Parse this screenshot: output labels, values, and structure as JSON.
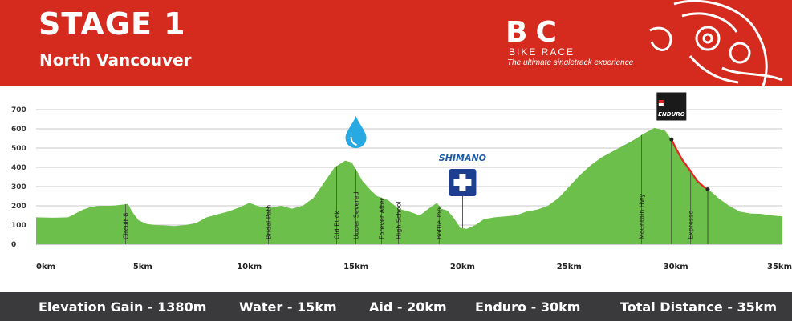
{
  "header": {
    "title": "STAGE 1",
    "subtitle": "North Vancouver",
    "logo_mark": "BC",
    "logo_name": "BIKE RACE",
    "logo_tagline": "The ultimate singletrack experience",
    "background_color": "#d52b1e"
  },
  "footer": {
    "stats": [
      "Elevation Gain - 1380m",
      "Water - 15km",
      "Aid - 20km",
      "Enduro - 30km",
      "Total Distance - 35km"
    ]
  },
  "icons": {
    "water": "water-drop-icon",
    "aid": "first-aid-cross-icon",
    "aid_sponsor": "SHIMANO",
    "enduro": "enduro-flag-icon",
    "enduro_label": "ENDURO",
    "mask": "haida-mask-logo-icon"
  },
  "chart_data": {
    "type": "area",
    "title": "STAGE 1",
    "subtitle": "North Vancouver",
    "xlabel": "",
    "ylabel": "",
    "x_unit": "km",
    "xlim": [
      0,
      35
    ],
    "ylim": [
      0,
      700
    ],
    "x_ticks": [
      "0km",
      "5km",
      "10km",
      "15km",
      "20km",
      "25km",
      "30km",
      "35km"
    ],
    "y_ticks": [
      "0",
      "100",
      "200",
      "300",
      "400",
      "500",
      "600",
      "700"
    ],
    "grid": true,
    "area_color": "#6cbf4a",
    "enduro_color": "#e8231d",
    "series": [
      {
        "x": [
          0,
          0.8,
          1.5,
          2.2,
          2.6,
          3.0,
          3.5,
          4.0,
          4.3,
          4.5,
          4.8,
          5.2,
          5.6,
          6.0,
          6.5,
          7.0,
          7.5,
          8.0,
          8.5,
          9.0,
          9.5,
          10.0,
          10.5,
          11.0,
          11.5,
          12.0,
          12.5,
          13.0,
          13.5,
          14.0,
          14.5,
          14.8,
          15.0,
          15.3,
          15.7,
          16.0,
          16.5,
          17.0,
          17.5,
          18.0,
          18.4,
          18.8,
          19.0,
          19.3,
          19.6,
          19.9,
          20.2,
          20.6,
          21.0,
          21.5,
          22.0,
          22.5,
          23.0,
          23.5,
          24.0,
          24.5,
          25.0,
          25.5,
          26.0,
          26.5,
          27.0,
          27.5,
          28.0,
          28.5,
          29.0,
          29.5,
          29.8,
          30.0,
          30.3,
          30.7,
          31.0,
          31.3,
          31.7,
          32.0,
          32.5,
          33.0,
          33.5,
          34.0,
          34.5,
          35.0
        ],
        "y": [
          140,
          138,
          140,
          180,
          195,
          200,
          200,
          205,
          210,
          170,
          125,
          105,
          100,
          98,
          95,
          100,
          110,
          140,
          155,
          170,
          190,
          215,
          195,
          190,
          200,
          185,
          200,
          240,
          320,
          400,
          435,
          425,
          390,
          330,
          280,
          250,
          230,
          185,
          170,
          150,
          185,
          215,
          185,
          175,
          135,
          85,
          80,
          100,
          130,
          140,
          145,
          150,
          170,
          180,
          200,
          240,
          300,
          360,
          410,
          450,
          480,
          510,
          540,
          575,
          605,
          590,
          545,
          500,
          440,
          380,
          330,
          300,
          270,
          240,
          200,
          170,
          160,
          158,
          150,
          145
        ]
      }
    ],
    "markers": [
      {
        "x": 4.2,
        "label": "Circuit 8"
      },
      {
        "x": 10.9,
        "label": "Bridal Path"
      },
      {
        "x": 14.1,
        "label": "Old Buck"
      },
      {
        "x": 15.0,
        "label": "Upper Severed"
      },
      {
        "x": 16.2,
        "label": "Forever After"
      },
      {
        "x": 17.0,
        "label": "High School"
      },
      {
        "x": 18.9,
        "label": "Bottle Top"
      },
      {
        "x": 28.4,
        "label": "Mountain Hwy"
      },
      {
        "x": 30.7,
        "label": "Expresso"
      }
    ],
    "enduro_segment": {
      "start_km": 29.8,
      "end_km": 31.5
    }
  }
}
